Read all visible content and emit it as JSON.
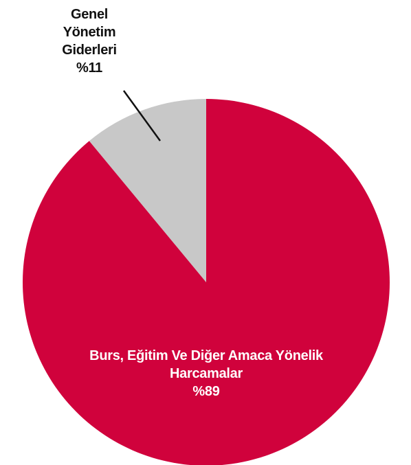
{
  "chart_data": {
    "type": "pie",
    "categories": [
      "Burs, Eğitim Ve Diğer Amaca Yönelik Harcamalar",
      "Genel Yönetim Giderleri"
    ],
    "values": [
      89,
      11
    ],
    "value_labels": [
      "%89",
      "%11"
    ],
    "colors": [
      "#d0023c",
      "#c8c8c8"
    ]
  }
}
